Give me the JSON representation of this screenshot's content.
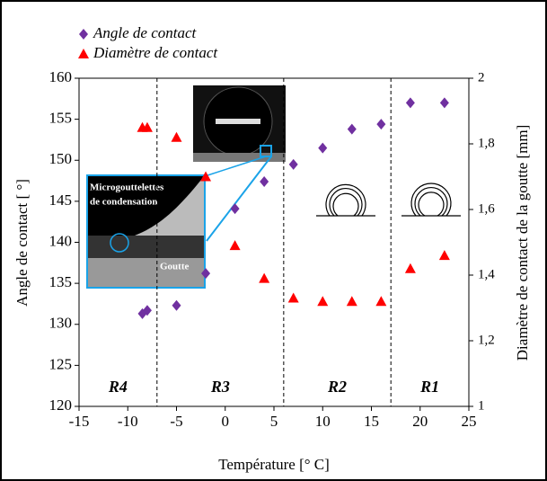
{
  "chart_data": {
    "type": "scatter",
    "x_label": "Température [° C]",
    "y_label": "Angle de contact [ °]",
    "y2_label": "Diamètre de contact de la goutte [mm]",
    "xlim": [
      -15,
      25
    ],
    "xticks": [
      -15,
      -10,
      -5,
      0,
      5,
      10,
      15,
      20,
      25
    ],
    "ylim": [
      120,
      160
    ],
    "yticks": [
      120,
      125,
      130,
      135,
      140,
      145,
      150,
      155,
      160
    ],
    "y2lim": [
      1,
      2
    ],
    "y2ticks": [
      1,
      {
        "value": 1.2,
        "label": "1,2"
      },
      {
        "value": 1.4,
        "label": "1,4"
      },
      {
        "value": 1.6,
        "label": "1,6"
      },
      {
        "value": 1.8,
        "label": "1,8"
      },
      2
    ],
    "legend": "top-left",
    "series": [
      {
        "name": "Angle de contact",
        "color": "#7030a0",
        "marker": "diamond",
        "x": [
          -8.5,
          -8,
          -5,
          -2,
          1,
          4,
          7,
          10,
          13,
          16,
          19,
          22.5
        ],
        "values": [
          131.3,
          131.7,
          132.3,
          136.2,
          144.1,
          147.4,
          149.5,
          151.5,
          153.8,
          154.4,
          157,
          157
        ]
      },
      {
        "name": "Diamètre de contact",
        "color": "#ff0000",
        "marker": "triangle",
        "axis": "y2",
        "x": [
          -8.5,
          -8,
          -5,
          -2,
          1,
          4,
          7,
          10,
          13,
          16,
          19,
          22.5
        ],
        "values": [
          1.85,
          1.85,
          1.82,
          1.7,
          1.49,
          1.39,
          1.33,
          1.32,
          1.32,
          1.32,
          1.42,
          1.46
        ]
      }
    ],
    "vlines": [
      -7,
      6,
      17
    ],
    "regions": [
      "R4",
      "R3",
      "R2",
      "R1"
    ],
    "inset_labels": [
      "Microgouttelettes",
      "de condensation",
      "Goutte"
    ]
  }
}
